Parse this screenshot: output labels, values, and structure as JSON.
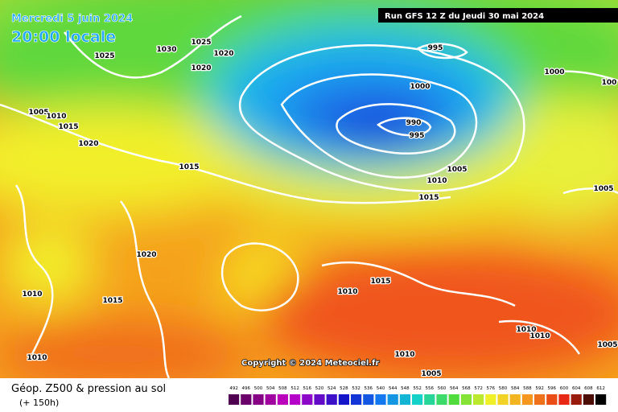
{
  "header": {
    "date": "Mercredi 5 juin 2024",
    "time": "20:00 locale",
    "run": "Run GFS 12 Z du Jeudi 30 mai 2024"
  },
  "copyright": "Copyright © 2024 Meteociel.fr",
  "legend": {
    "title": "Géop. Z500 & pression au sol",
    "lead": "(+ 150h)",
    "scale": [
      492,
      496,
      500,
      504,
      508,
      512,
      516,
      520,
      524,
      528,
      532,
      536,
      540,
      544,
      548,
      552,
      556,
      560,
      564,
      568,
      572,
      576,
      580,
      584,
      588,
      592,
      596,
      600,
      604,
      608,
      612
    ]
  },
  "isobar_labels": [
    "1025",
    "1030",
    "1025",
    "1020",
    "1020",
    "995",
    "1000",
    "100",
    "1000",
    "990",
    "995",
    "1005",
    "1010",
    "1015",
    "1020",
    "1015",
    "1005",
    "1010",
    "1015",
    "1005",
    "1020",
    "1015",
    "1010",
    "1010",
    "1015",
    "1010",
    "1010",
    "1005",
    "1010",
    "1010",
    "1005"
  ]
}
